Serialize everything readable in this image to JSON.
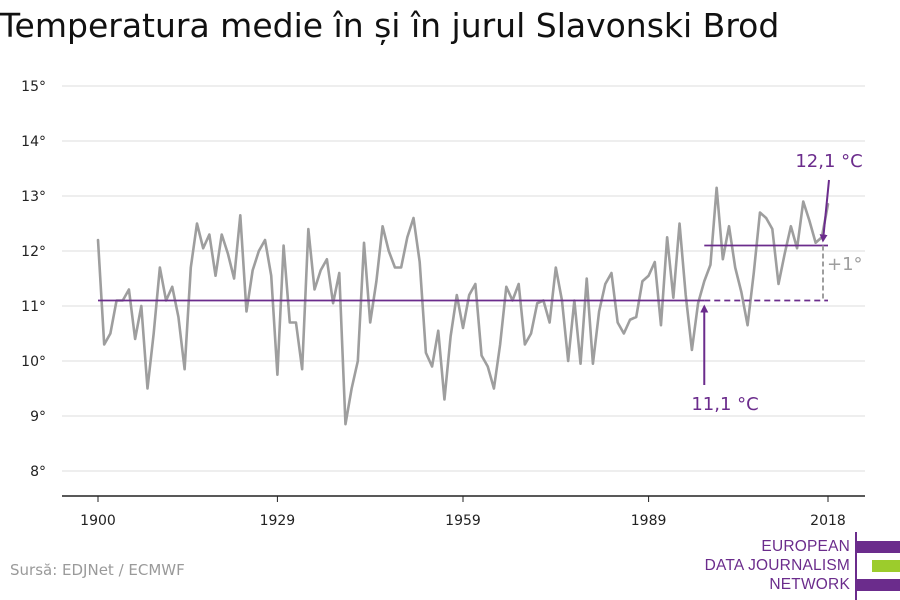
{
  "title": "Temperatura medie în și în jurul Slavonski Brod",
  "source": "Sursă: EDJNet / ECMWF",
  "logo": {
    "line1": "EUROPEAN",
    "line2": "DATA JOURNALISM",
    "line3": "NETWORK",
    "colors": [
      "#6b2c8c",
      "#9ccc2c",
      "#6b2c8c"
    ]
  },
  "colors": {
    "series": "#9e9e9e",
    "average": "#6b2c8c",
    "grid": "#dddddd",
    "axis": "#222222",
    "delta": "#9e9e9e"
  },
  "chart_data": {
    "type": "line",
    "title": "Temperatura medie în și în jurul Slavonski Brod",
    "xlabel": "",
    "ylabel": "",
    "xlim": [
      1900,
      2018
    ],
    "ylim": [
      8,
      15
    ],
    "x_ticks": [
      1900,
      1929,
      1959,
      1989,
      2018
    ],
    "y_ticks": [
      8,
      9,
      10,
      11,
      12,
      13,
      14,
      15
    ],
    "y_tick_suffix": "°",
    "grid": "horizontal",
    "series": [
      {
        "x": [
          1900,
          1901,
          1902,
          1903,
          1904,
          1905,
          1906,
          1907,
          1908,
          1909,
          1910,
          1911,
          1912,
          1913,
          1914,
          1915,
          1916,
          1917,
          1918,
          1919,
          1920,
          1921,
          1922,
          1923,
          1924,
          1925,
          1926,
          1927,
          1928,
          1929,
          1930,
          1931,
          1932,
          1933,
          1934,
          1935,
          1936,
          1937,
          1938,
          1939,
          1940,
          1941,
          1942,
          1943,
          1944,
          1945,
          1946,
          1947,
          1948,
          1949,
          1950,
          1951,
          1952,
          1953,
          1954,
          1955,
          1956,
          1957,
          1958,
          1959,
          1960,
          1961,
          1962,
          1963,
          1964,
          1965,
          1966,
          1967,
          1968,
          1969,
          1970,
          1971,
          1972,
          1973,
          1974,
          1975,
          1976,
          1977,
          1978,
          1979,
          1980,
          1981,
          1982,
          1983,
          1984,
          1985,
          1986,
          1987,
          1988,
          1989,
          1990,
          1991,
          1992,
          1993,
          1994,
          1995,
          1996,
          1997,
          1998,
          1999,
          2000,
          2001,
          2002,
          2003,
          2004,
          2005,
          2006,
          2007,
          2008,
          2009,
          2010,
          2011,
          2012,
          2013,
          2014,
          2015,
          2016,
          2017,
          2018
        ],
        "values": [
          12.2,
          10.3,
          10.5,
          11.1,
          11.1,
          11.3,
          10.4,
          11.0,
          9.5,
          10.5,
          11.7,
          11.1,
          11.35,
          10.8,
          9.85,
          11.7,
          12.5,
          12.05,
          12.3,
          11.55,
          12.3,
          11.95,
          11.5,
          12.65,
          10.9,
          11.65,
          12.0,
          12.2,
          11.55,
          9.75,
          12.1,
          10.7,
          10.7,
          9.85,
          12.4,
          11.3,
          11.65,
          11.85,
          11.05,
          11.6,
          8.85,
          9.5,
          10.0,
          12.15,
          10.7,
          11.45,
          12.45,
          12.0,
          11.7,
          11.7,
          12.25,
          12.6,
          11.8,
          10.15,
          9.9,
          10.55,
          9.3,
          10.45,
          11.2,
          10.6,
          11.2,
          11.4,
          10.1,
          9.9,
          9.5,
          10.3,
          11.35,
          11.1,
          11.4,
          10.3,
          10.5,
          11.05,
          11.1,
          10.7,
          11.7,
          11.1,
          10.0,
          11.1,
          9.95,
          11.5,
          9.95,
          10.9,
          11.4,
          11.6,
          10.7,
          10.5,
          10.75,
          10.8,
          11.45,
          11.55,
          11.8,
          10.65,
          12.25,
          11.15,
          12.5,
          11.2,
          10.2,
          11.05,
          11.45,
          11.75,
          13.15,
          11.85,
          12.45,
          11.7,
          11.25,
          10.65,
          11.6,
          12.7,
          12.6,
          12.4,
          11.4,
          11.95,
          12.45,
          12.05,
          12.9,
          12.55,
          12.15,
          12.25,
          12.85
        ]
      }
    ],
    "baseline": {
      "value": 11.1,
      "label": "11,1 °C",
      "from": 1900,
      "to": 2018
    },
    "recent": {
      "value": 12.1,
      "label": "12,1 °C",
      "from": 1998,
      "to": 2018
    },
    "delta_label": "+1°"
  }
}
